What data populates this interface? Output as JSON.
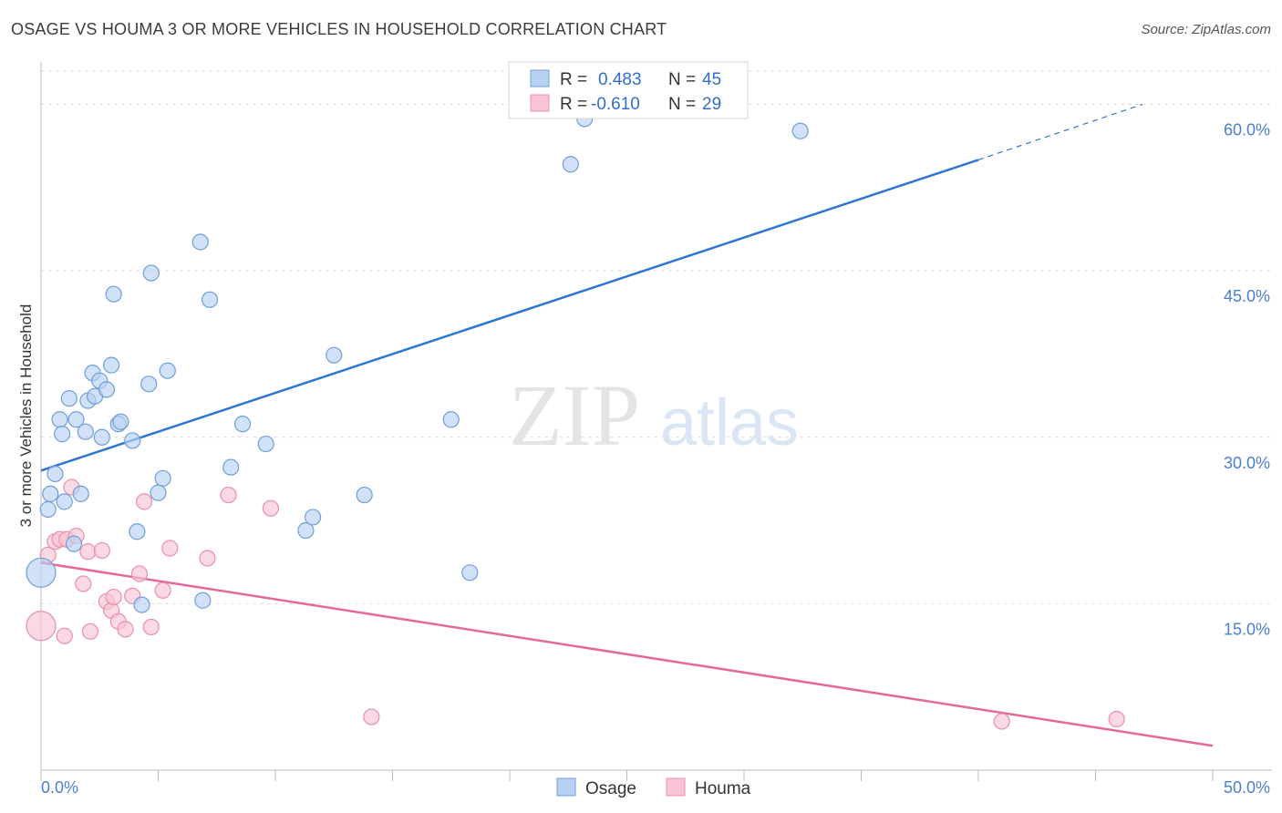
{
  "header": {
    "title": "OSAGE VS HOUMA 3 OR MORE VEHICLES IN HOUSEHOLD CORRELATION CHART",
    "source": "Source: ZipAtlas.com"
  },
  "watermark": {
    "zip": "ZIP",
    "atlas": "atlas"
  },
  "legend": {
    "rows": [
      {
        "r_label": "R =",
        "r_value": "0.483",
        "n_label": "N =",
        "n_value": "45"
      },
      {
        "r_label": "R =",
        "r_value": "-0.610",
        "n_label": "N =",
        "n_value": "29"
      }
    ]
  },
  "bottom_legend": {
    "items": [
      "Osage",
      "Houma"
    ]
  },
  "colors": {
    "osage_fill": "#b8d1f3",
    "osage_stroke": "#6e9fdc",
    "osage_line": "#2f76d2",
    "houma_fill": "#f9c4d3",
    "houma_stroke": "#e98fab",
    "houma_line": "#e4689a",
    "grid": "#dddddd",
    "axis_text": "#4a7fcf"
  },
  "chart_data": {
    "type": "scatter",
    "title": "OSAGE VS HOUMA 3 OR MORE VEHICLES IN HOUSEHOLD CORRELATION CHART",
    "xlabel": "",
    "ylabel": "3 or more Vehicles in Household",
    "xlim": [
      0,
      50
    ],
    "ylim": [
      0,
      63
    ],
    "x_tick_labels": [
      "0.0%",
      "50.0%"
    ],
    "y_ticks": [
      15,
      30,
      45,
      60
    ],
    "y_tick_labels": [
      "15.0%",
      "30.0%",
      "45.0%",
      "60.0%"
    ],
    "series": [
      {
        "name": "Osage",
        "r": 0.483,
        "n": 45,
        "trend": {
          "x0": 0,
          "y0": 27.0,
          "x1": 40,
          "y1": 55.0,
          "dash_x1": 47,
          "dash_y1": 60.0
        },
        "points": [
          {
            "x": 0.0,
            "y": 17.8,
            "big": true
          },
          {
            "x": 0.3,
            "y": 23.5
          },
          {
            "x": 0.4,
            "y": 24.9
          },
          {
            "x": 0.6,
            "y": 26.7
          },
          {
            "x": 0.8,
            "y": 31.6
          },
          {
            "x": 0.9,
            "y": 30.3
          },
          {
            "x": 1.0,
            "y": 24.2
          },
          {
            "x": 1.2,
            "y": 33.5
          },
          {
            "x": 1.4,
            "y": 20.4
          },
          {
            "x": 1.5,
            "y": 31.6
          },
          {
            "x": 1.7,
            "y": 24.9
          },
          {
            "x": 1.9,
            "y": 30.5
          },
          {
            "x": 2.0,
            "y": 33.3
          },
          {
            "x": 2.2,
            "y": 35.8
          },
          {
            "x": 2.3,
            "y": 33.7
          },
          {
            "x": 2.5,
            "y": 35.1
          },
          {
            "x": 2.6,
            "y": 30.0
          },
          {
            "x": 2.8,
            "y": 34.3
          },
          {
            "x": 3.0,
            "y": 36.5
          },
          {
            "x": 3.1,
            "y": 42.9
          },
          {
            "x": 3.3,
            "y": 31.2
          },
          {
            "x": 3.4,
            "y": 31.4
          },
          {
            "x": 3.9,
            "y": 29.7
          },
          {
            "x": 4.1,
            "y": 21.5
          },
          {
            "x": 4.3,
            "y": 14.9
          },
          {
            "x": 4.6,
            "y": 34.8
          },
          {
            "x": 4.7,
            "y": 44.8
          },
          {
            "x": 5.0,
            "y": 25.0
          },
          {
            "x": 5.2,
            "y": 26.3
          },
          {
            "x": 5.4,
            "y": 36.0
          },
          {
            "x": 6.8,
            "y": 47.6
          },
          {
            "x": 6.9,
            "y": 15.3
          },
          {
            "x": 7.2,
            "y": 42.4
          },
          {
            "x": 8.1,
            "y": 27.3
          },
          {
            "x": 8.6,
            "y": 31.2
          },
          {
            "x": 9.6,
            "y": 29.4
          },
          {
            "x": 11.3,
            "y": 21.6
          },
          {
            "x": 11.6,
            "y": 22.8
          },
          {
            "x": 12.5,
            "y": 37.4
          },
          {
            "x": 13.8,
            "y": 24.8
          },
          {
            "x": 17.5,
            "y": 31.6
          },
          {
            "x": 18.3,
            "y": 17.8
          },
          {
            "x": 22.6,
            "y": 54.6
          },
          {
            "x": 23.2,
            "y": 58.7
          },
          {
            "x": 32.4,
            "y": 57.6
          }
        ]
      },
      {
        "name": "Houma",
        "r": -0.61,
        "n": 29,
        "trend": {
          "x0": 0,
          "y0": 18.7,
          "x1": 50,
          "y1": 2.2
        },
        "points": [
          {
            "x": 0.0,
            "y": 13.0,
            "big": true
          },
          {
            "x": 0.3,
            "y": 19.4
          },
          {
            "x": 0.6,
            "y": 20.6
          },
          {
            "x": 0.8,
            "y": 20.8
          },
          {
            "x": 1.0,
            "y": 12.1
          },
          {
            "x": 1.1,
            "y": 20.8
          },
          {
            "x": 1.3,
            "y": 25.5
          },
          {
            "x": 1.5,
            "y": 21.1
          },
          {
            "x": 1.8,
            "y": 16.8
          },
          {
            "x": 2.0,
            "y": 19.7
          },
          {
            "x": 2.1,
            "y": 12.5
          },
          {
            "x": 2.6,
            "y": 19.8
          },
          {
            "x": 2.8,
            "y": 15.2
          },
          {
            "x": 3.0,
            "y": 14.4
          },
          {
            "x": 3.1,
            "y": 15.6
          },
          {
            "x": 3.3,
            "y": 13.4
          },
          {
            "x": 3.6,
            "y": 12.7
          },
          {
            "x": 3.9,
            "y": 15.7
          },
          {
            "x": 4.2,
            "y": 17.7
          },
          {
            "x": 4.4,
            "y": 24.2
          },
          {
            "x": 4.7,
            "y": 12.9
          },
          {
            "x": 5.2,
            "y": 16.2
          },
          {
            "x": 5.5,
            "y": 20.0
          },
          {
            "x": 7.1,
            "y": 19.1
          },
          {
            "x": 8.0,
            "y": 24.8
          },
          {
            "x": 9.8,
            "y": 23.6
          },
          {
            "x": 14.1,
            "y": 4.8
          },
          {
            "x": 41.0,
            "y": 4.4
          },
          {
            "x": 45.9,
            "y": 4.6
          }
        ]
      }
    ]
  }
}
